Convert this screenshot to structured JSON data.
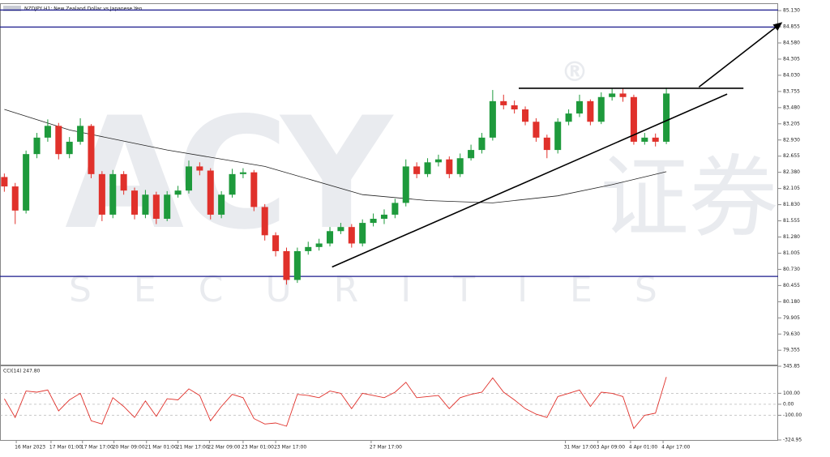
{
  "chart_data": {
    "type": "candlestick",
    "title": "NZDJPY,H1: New Zealand Dollar vs Japanese Yen",
    "open": [
      82.3,
      82.14,
      81.73,
      82.69,
      82.97,
      83.17,
      82.69,
      82.9,
      83.17,
      82.35,
      81.66,
      82.35,
      82.07,
      81.66,
      82.0,
      81.59,
      82.0,
      82.07,
      82.48,
      82.41,
      81.66,
      82.0,
      82.35,
      82.38,
      81.79,
      81.31,
      81.04,
      80.55,
      81.04,
      81.11,
      81.17,
      81.38,
      81.45,
      81.17,
      81.52,
      81.59,
      81.66,
      81.86,
      82.48,
      82.35,
      82.55,
      82.6,
      82.35,
      82.62,
      82.76,
      82.97,
      83.59,
      83.52,
      83.45,
      83.24,
      82.97,
      82.76,
      83.24,
      83.38,
      83.59,
      83.24,
      83.66,
      83.72,
      83.66,
      82.9,
      82.97,
      82.9
    ],
    "high": [
      82.36,
      82.2,
      82.75,
      83.05,
      83.28,
      83.22,
      82.98,
      83.3,
      83.2,
      82.4,
      82.42,
      82.4,
      82.12,
      82.08,
      82.05,
      82.06,
      82.15,
      82.58,
      82.55,
      82.45,
      82.06,
      82.44,
      82.45,
      82.42,
      81.84,
      81.36,
      81.1,
      81.1,
      81.2,
      81.25,
      81.45,
      81.52,
      81.5,
      81.58,
      81.68,
      81.75,
      81.93,
      82.6,
      82.55,
      82.62,
      82.68,
      82.65,
      82.7,
      82.85,
      83.05,
      83.78,
      83.7,
      83.6,
      83.5,
      83.3,
      83.02,
      83.3,
      83.45,
      83.7,
      83.62,
      83.74,
      83.8,
      83.8,
      83.7,
      83.05,
      83.04,
      83.82
    ],
    "low": [
      82.05,
      81.5,
      81.68,
      82.62,
      82.9,
      82.6,
      82.62,
      82.85,
      82.28,
      81.55,
      81.6,
      82.0,
      81.58,
      81.6,
      81.5,
      81.55,
      81.95,
      82.02,
      82.33,
      81.58,
      81.6,
      81.95,
      82.28,
      81.72,
      81.22,
      80.95,
      80.47,
      80.5,
      80.98,
      81.05,
      81.12,
      81.33,
      81.1,
      81.12,
      81.46,
      81.5,
      81.6,
      81.8,
      82.28,
      82.3,
      82.48,
      82.28,
      82.3,
      82.58,
      82.7,
      82.92,
      83.45,
      83.38,
      83.18,
      82.9,
      82.62,
      82.7,
      83.18,
      83.32,
      83.18,
      83.2,
      83.6,
      83.58,
      82.85,
      82.85,
      82.82,
      82.86
    ],
    "close": [
      82.14,
      81.73,
      82.69,
      82.97,
      83.17,
      82.69,
      82.9,
      83.17,
      82.35,
      81.66,
      82.35,
      82.07,
      81.66,
      82.0,
      81.59,
      82.0,
      82.07,
      82.48,
      82.41,
      81.66,
      82.0,
      82.35,
      82.38,
      81.79,
      81.31,
      81.04,
      80.55,
      81.04,
      81.11,
      81.17,
      81.38,
      81.45,
      81.17,
      81.52,
      81.59,
      81.66,
      81.86,
      82.48,
      82.35,
      82.55,
      82.6,
      82.35,
      82.62,
      82.76,
      82.97,
      83.59,
      83.52,
      83.45,
      83.24,
      82.97,
      82.76,
      83.24,
      83.38,
      83.59,
      83.24,
      83.66,
      83.72,
      83.66,
      82.9,
      82.97,
      82.9,
      83.72
    ],
    "colors": {
      "up": "#1e9a3c",
      "down": "#e0312b"
    },
    "xlim": [
      -0.4,
      71.3
    ],
    "xticks": [
      {
        "value": 1.1,
        "label": "16 Mar 2023"
      },
      {
        "value": 4.3,
        "label": "17 Mar 01:00"
      },
      {
        "value": 7.2,
        "label": "17 Mar 17:00"
      },
      {
        "value": 10.1,
        "label": "20 Mar 09:00"
      },
      {
        "value": 13.1,
        "label": "21 Mar 01:00"
      },
      {
        "value": 16,
        "label": "21 Mar 17:00"
      },
      {
        "value": 18.9,
        "label": "22 Mar 09:00"
      },
      {
        "value": 22,
        "label": "23 Mar 01:00"
      },
      {
        "value": 25,
        "label": "23 Mar 17:00"
      },
      {
        "value": 33.8,
        "label": "27 Mar 17:00"
      },
      {
        "value": 51.7,
        "label": "31 Mar 17:00"
      },
      {
        "value": 54.7,
        "label": "3 Apr 09:00"
      },
      {
        "value": 57.7,
        "label": "4 Apr 01:00"
      },
      {
        "value": 60.7,
        "label": "4 Apr 17:00"
      }
    ],
    "ylim": [
      79.11,
      85.2
    ],
    "yticks": [
      {
        "value": 85.13,
        "label": "85.130"
      },
      84.855,
      {
        "value": 84.58,
        "label": "84.580"
      },
      84.305,
      {
        "value": 84.03,
        "label": "84.030"
      },
      83.755,
      {
        "value": 83.48,
        "label": "83.480"
      },
      83.205,
      {
        "value": 82.93,
        "label": "82.930"
      },
      82.655,
      {
        "value": 82.38,
        "label": "82.380"
      },
      82.105,
      {
        "value": 81.83,
        "label": "81.830"
      },
      81.555,
      {
        "value": 81.28,
        "label": "81.280"
      },
      81.005,
      {
        "value": 80.73,
        "label": "80.730"
      },
      80.455,
      {
        "value": 80.18,
        "label": "80.180"
      },
      79.905,
      {
        "value": 79.63,
        "label": "79.630"
      },
      79.355
    ],
    "moving_average": {
      "x": [
        0,
        6,
        15,
        24,
        33,
        39,
        45,
        51,
        56,
        61
      ],
      "values": [
        83.45,
        83.1,
        82.76,
        82.48,
        82.0,
        81.9,
        81.86,
        81.98,
        82.17,
        82.39
      ],
      "color": "#222222"
    },
    "hlines": [
      {
        "value": 85.14,
        "color": "#1a1a8c"
      },
      {
        "value": 84.85,
        "color": "#1a1a8c"
      },
      {
        "value": 80.61,
        "color": "#1a1a8c"
      }
    ],
    "drawings": [
      {
        "x": [
          47.4,
          68.1
        ],
        "values": [
          83.81,
          83.81
        ],
        "arrow": false
      },
      {
        "x": [
          30.2,
          66.6
        ],
        "values": [
          80.77,
          83.71
        ],
        "arrow": false
      },
      {
        "x": [
          64,
          71.6
        ],
        "values": [
          83.83,
          84.92
        ],
        "arrow": true
      }
    ],
    "indicator": {
      "type": "line",
      "label": "CCI(14) 247.80",
      "color": "#e0312b",
      "values": [
        50,
        -120,
        120,
        110,
        130,
        -60,
        40,
        100,
        -150,
        -180,
        60,
        -20,
        -120,
        30,
        -110,
        50,
        40,
        140,
        80,
        -150,
        -20,
        90,
        60,
        -130,
        -180,
        -170,
        -200,
        90,
        80,
        60,
        120,
        100,
        -40,
        100,
        80,
        60,
        110,
        200,
        60,
        70,
        80,
        -40,
        60,
        90,
        110,
        240,
        110,
        40,
        -40,
        -90,
        -120,
        70,
        100,
        130,
        -20,
        110,
        100,
        70,
        -220,
        -100,
        -80,
        247.8
      ],
      "ylim": [
        -324.95,
        345.85
      ],
      "yticks": [
        345.85,
        {
          "value": 100,
          "label": "100.00"
        },
        {
          "value": 0,
          "label": "0.00"
        },
        {
          "value": -100,
          "label": "-100.00"
        },
        -324.95
      ],
      "grid": [
        1,
        2,
        3
      ]
    },
    "watermark": {
      "logo": "ACY",
      "mark": "®",
      "cn": "证券",
      "en": "SECURITIES"
    }
  }
}
